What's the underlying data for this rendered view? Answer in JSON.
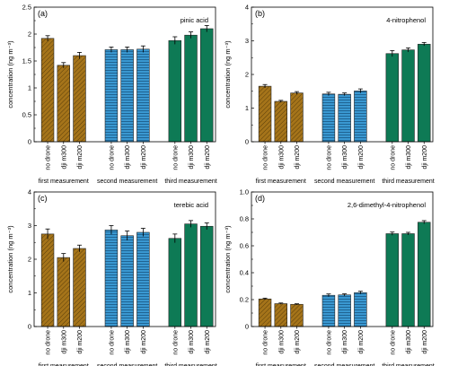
{
  "chart_data": [
    {
      "type": "bar",
      "panel_label": "(a)",
      "title": "pinic acid",
      "ylabel": "concentration (ng m⁻³)",
      "ylim": [
        0,
        2.5
      ],
      "yticks": [
        0,
        0.5,
        1,
        1.5,
        2,
        2.5
      ],
      "ytick_labels": [
        "0",
        "0.5",
        "1",
        "1.5",
        "2",
        "2.5"
      ],
      "categories": [
        "no drone",
        "dji m300",
        "dji m200",
        "no drone",
        "dji m300",
        "dji m200",
        "no drone",
        "dji m300",
        "dji m200"
      ],
      "values": [
        1.92,
        1.42,
        1.6,
        1.71,
        1.71,
        1.72,
        1.88,
        1.98,
        2.1
      ],
      "errors": [
        0.05,
        0.05,
        0.06,
        0.05,
        0.05,
        0.06,
        0.07,
        0.06,
        0.06
      ],
      "groups": [
        "first measurement",
        "second measurement",
        "third measurement"
      ]
    },
    {
      "type": "bar",
      "panel_label": "(b)",
      "title": "4-nitrophenol",
      "ylabel": "concentration (ng m⁻³)",
      "ylim": [
        0,
        4
      ],
      "yticks": [
        0,
        1,
        2,
        3,
        4
      ],
      "ytick_labels": [
        "0",
        "1",
        "2",
        "3",
        "4"
      ],
      "categories": [
        "no drone",
        "dji m300",
        "dji m200",
        "no drone",
        "dji m300",
        "dji m200",
        "no drone",
        "dji m300",
        "dji m200"
      ],
      "values": [
        1.65,
        1.2,
        1.45,
        1.42,
        1.41,
        1.51,
        2.62,
        2.73,
        2.9
      ],
      "errors": [
        0.05,
        0.03,
        0.04,
        0.05,
        0.04,
        0.06,
        0.09,
        0.06,
        0.05
      ],
      "groups": [
        "first measurement",
        "second measurement",
        "third measurement"
      ]
    },
    {
      "type": "bar",
      "panel_label": "(c)",
      "title": "terebic acid",
      "ylabel": "concentration (ng m⁻³)",
      "ylim": [
        0,
        4
      ],
      "yticks": [
        0,
        1,
        2,
        3,
        4
      ],
      "ytick_labels": [
        "0",
        "1",
        "2",
        "3",
        "4"
      ],
      "categories": [
        "no drone",
        "dji m300",
        "dji m200",
        "no drone",
        "dji m300",
        "dji m200",
        "no drone",
        "dji m300",
        "dji m200"
      ],
      "values": [
        2.75,
        2.05,
        2.32,
        2.87,
        2.7,
        2.8,
        2.62,
        3.05,
        2.98
      ],
      "errors": [
        0.15,
        0.12,
        0.1,
        0.13,
        0.14,
        0.12,
        0.13,
        0.1,
        0.1
      ],
      "groups": [
        "first measurement",
        "second measurement",
        "third measurement"
      ]
    },
    {
      "type": "bar",
      "panel_label": "(d)",
      "title": "2,6-dimethyl-4-nitrophenol",
      "ylabel": "concentration (ng m⁻³)",
      "ylim": [
        0,
        1.0
      ],
      "yticks": [
        0,
        0.2,
        0.4,
        0.6,
        0.8,
        1.0
      ],
      "ytick_labels": [
        "0",
        "0.2",
        "0.4",
        "0.6",
        "0.8",
        "1.0"
      ],
      "categories": [
        "no drone",
        "dji m300",
        "dji m200",
        "no drone",
        "dji m300",
        "dji m200",
        "no drone",
        "dji m300",
        "dji m200"
      ],
      "values": [
        0.205,
        0.17,
        0.165,
        0.232,
        0.235,
        0.252,
        0.69,
        0.69,
        0.775
      ],
      "errors": [
        0.006,
        0.005,
        0.004,
        0.01,
        0.008,
        0.01,
        0.012,
        0.01,
        0.012
      ],
      "groups": [
        "first measurement",
        "second measurement",
        "third measurement"
      ]
    }
  ],
  "colors": {
    "first": "#a5741a",
    "second": "#3a98d1",
    "third": "#0e7a55",
    "hatch_first": "#5a3e08",
    "hatch_second": "#1b5e8c",
    "axis": "#000000"
  }
}
